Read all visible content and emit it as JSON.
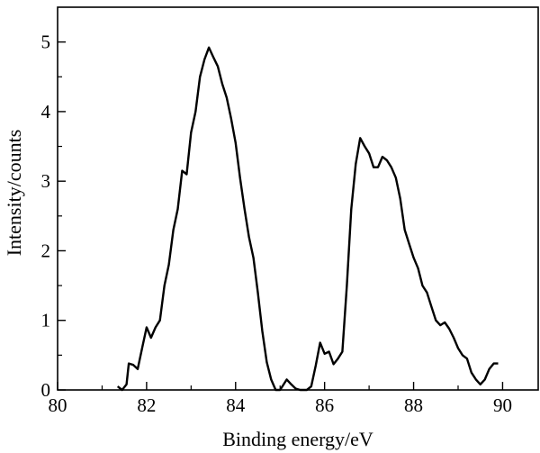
{
  "chart_data": {
    "type": "line",
    "title": "",
    "xlabel": "Binding energy/eV",
    "ylabel": "Intensity/counts",
    "xlim": [
      80,
      90.8
    ],
    "ylim": [
      0,
      5.5
    ],
    "xticks": [
      80,
      82,
      84,
      86,
      88,
      90
    ],
    "yticks": [
      0,
      1,
      2,
      3,
      4,
      5
    ],
    "grid": false,
    "legend": "none",
    "series": [
      {
        "color": "#000000",
        "x": [
          81.35,
          81.45,
          81.55,
          81.6,
          81.7,
          81.8,
          81.9,
          82.0,
          82.1,
          82.2,
          82.3,
          82.4,
          82.5,
          82.6,
          82.7,
          82.8,
          82.9,
          83.0,
          83.1,
          83.2,
          83.3,
          83.4,
          83.5,
          83.6,
          83.7,
          83.8,
          83.9,
          84.0,
          84.1,
          84.2,
          84.3,
          84.4,
          84.5,
          84.6,
          84.7,
          84.8,
          84.9,
          85.0,
          85.05,
          85.15,
          85.25,
          85.35,
          85.45,
          85.6,
          85.7,
          85.8,
          85.9,
          86.0,
          86.1,
          86.2,
          86.3,
          86.4,
          86.5,
          86.6,
          86.7,
          86.8,
          86.9,
          87.0,
          87.1,
          87.2,
          87.3,
          87.4,
          87.5,
          87.6,
          87.7,
          87.8,
          87.9,
          88.0,
          88.1,
          88.2,
          88.3,
          88.4,
          88.5,
          88.6,
          88.7,
          88.8,
          88.9,
          89.0,
          89.1,
          89.2,
          89.3,
          89.4,
          89.5,
          89.6,
          89.7,
          89.8,
          89.9
        ],
        "y": [
          0.05,
          0.0,
          0.08,
          0.38,
          0.36,
          0.3,
          0.6,
          0.9,
          0.75,
          0.9,
          1.0,
          1.5,
          1.8,
          2.3,
          2.6,
          3.15,
          3.1,
          3.7,
          4.0,
          4.5,
          4.75,
          4.92,
          4.78,
          4.65,
          4.4,
          4.2,
          3.9,
          3.55,
          3.05,
          2.6,
          2.2,
          1.9,
          1.4,
          0.85,
          0.4,
          0.15,
          0.0,
          0.0,
          0.05,
          0.15,
          0.08,
          0.02,
          0.0,
          0.0,
          0.05,
          0.35,
          0.68,
          0.52,
          0.55,
          0.37,
          0.45,
          0.55,
          1.5,
          2.6,
          3.25,
          3.62,
          3.5,
          3.4,
          3.2,
          3.2,
          3.35,
          3.3,
          3.2,
          3.05,
          2.75,
          2.3,
          2.1,
          1.9,
          1.75,
          1.5,
          1.4,
          1.2,
          1.0,
          0.93,
          0.97,
          0.88,
          0.75,
          0.6,
          0.5,
          0.45,
          0.25,
          0.15,
          0.08,
          0.15,
          0.3,
          0.38,
          0.38
        ]
      }
    ]
  }
}
